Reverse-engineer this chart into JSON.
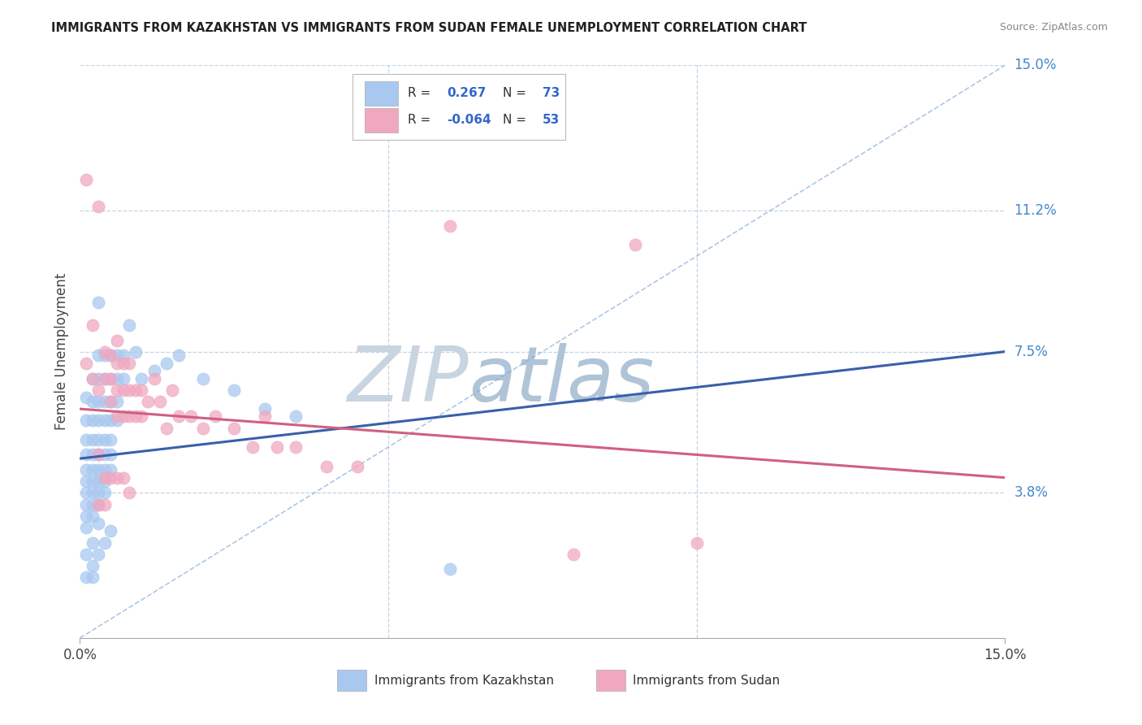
{
  "title": "IMMIGRANTS FROM KAZAKHSTAN VS IMMIGRANTS FROM SUDAN FEMALE UNEMPLOYMENT CORRELATION CHART",
  "source": "Source: ZipAtlas.com",
  "ylabel": "Female Unemployment",
  "xlim": [
    0,
    0.15
  ],
  "ylim": [
    0,
    0.15
  ],
  "ytick_labels_right": [
    "15.0%",
    "11.2%",
    "7.5%",
    "3.8%"
  ],
  "ytick_values_right": [
    0.15,
    0.112,
    0.075,
    0.038
  ],
  "kazakhstan_color": "#a8c8f0",
  "sudan_color": "#f0a8c0",
  "kazakhstan_R": 0.267,
  "kazakhstan_N": 73,
  "sudan_R": -0.064,
  "sudan_N": 53,
  "trend_blue": "#3a5faa",
  "trend_pink": "#d06080",
  "diag_color": "#8ab0d8",
  "watermark_zip": "ZIP",
  "watermark_atlas": "atlas",
  "watermark_color_zip": "#c8d8e8",
  "watermark_color_atlas": "#b8cfe8",
  "kazakhstan_points": [
    [
      0.001,
      0.063
    ],
    [
      0.001,
      0.057
    ],
    [
      0.001,
      0.052
    ],
    [
      0.001,
      0.048
    ],
    [
      0.001,
      0.044
    ],
    [
      0.001,
      0.041
    ],
    [
      0.001,
      0.038
    ],
    [
      0.001,
      0.035
    ],
    [
      0.001,
      0.032
    ],
    [
      0.001,
      0.029
    ],
    [
      0.002,
      0.068
    ],
    [
      0.002,
      0.062
    ],
    [
      0.002,
      0.057
    ],
    [
      0.002,
      0.052
    ],
    [
      0.002,
      0.048
    ],
    [
      0.002,
      0.044
    ],
    [
      0.002,
      0.041
    ],
    [
      0.002,
      0.038
    ],
    [
      0.002,
      0.035
    ],
    [
      0.002,
      0.032
    ],
    [
      0.003,
      0.074
    ],
    [
      0.003,
      0.068
    ],
    [
      0.003,
      0.062
    ],
    [
      0.003,
      0.057
    ],
    [
      0.003,
      0.052
    ],
    [
      0.003,
      0.048
    ],
    [
      0.003,
      0.044
    ],
    [
      0.003,
      0.041
    ],
    [
      0.003,
      0.038
    ],
    [
      0.003,
      0.035
    ],
    [
      0.004,
      0.074
    ],
    [
      0.004,
      0.068
    ],
    [
      0.004,
      0.062
    ],
    [
      0.004,
      0.057
    ],
    [
      0.004,
      0.052
    ],
    [
      0.004,
      0.048
    ],
    [
      0.004,
      0.044
    ],
    [
      0.004,
      0.041
    ],
    [
      0.004,
      0.038
    ],
    [
      0.005,
      0.074
    ],
    [
      0.005,
      0.068
    ],
    [
      0.005,
      0.062
    ],
    [
      0.005,
      0.057
    ],
    [
      0.005,
      0.052
    ],
    [
      0.005,
      0.048
    ],
    [
      0.005,
      0.044
    ],
    [
      0.006,
      0.074
    ],
    [
      0.006,
      0.068
    ],
    [
      0.006,
      0.062
    ],
    [
      0.006,
      0.057
    ],
    [
      0.007,
      0.074
    ],
    [
      0.007,
      0.068
    ],
    [
      0.008,
      0.082
    ],
    [
      0.009,
      0.075
    ],
    [
      0.01,
      0.068
    ],
    [
      0.012,
      0.07
    ],
    [
      0.014,
      0.072
    ],
    [
      0.016,
      0.074
    ],
    [
      0.02,
      0.068
    ],
    [
      0.025,
      0.065
    ],
    [
      0.03,
      0.06
    ],
    [
      0.035,
      0.058
    ],
    [
      0.003,
      0.088
    ],
    [
      0.002,
      0.025
    ],
    [
      0.001,
      0.022
    ],
    [
      0.002,
      0.019
    ],
    [
      0.003,
      0.022
    ],
    [
      0.004,
      0.025
    ],
    [
      0.005,
      0.028
    ],
    [
      0.001,
      0.016
    ],
    [
      0.002,
      0.016
    ],
    [
      0.003,
      0.03
    ],
    [
      0.06,
      0.018
    ]
  ],
  "sudan_points": [
    [
      0.001,
      0.12
    ],
    [
      0.003,
      0.113
    ],
    [
      0.002,
      0.082
    ],
    [
      0.001,
      0.072
    ],
    [
      0.002,
      0.068
    ],
    [
      0.003,
      0.065
    ],
    [
      0.004,
      0.075
    ],
    [
      0.004,
      0.068
    ],
    [
      0.005,
      0.074
    ],
    [
      0.005,
      0.068
    ],
    [
      0.005,
      0.062
    ],
    [
      0.006,
      0.078
    ],
    [
      0.006,
      0.072
    ],
    [
      0.006,
      0.065
    ],
    [
      0.006,
      0.058
    ],
    [
      0.007,
      0.072
    ],
    [
      0.007,
      0.065
    ],
    [
      0.007,
      0.058
    ],
    [
      0.008,
      0.072
    ],
    [
      0.008,
      0.065
    ],
    [
      0.008,
      0.058
    ],
    [
      0.009,
      0.065
    ],
    [
      0.009,
      0.058
    ],
    [
      0.01,
      0.065
    ],
    [
      0.01,
      0.058
    ],
    [
      0.011,
      0.062
    ],
    [
      0.012,
      0.068
    ],
    [
      0.013,
      0.062
    ],
    [
      0.014,
      0.055
    ],
    [
      0.015,
      0.065
    ],
    [
      0.016,
      0.058
    ],
    [
      0.018,
      0.058
    ],
    [
      0.02,
      0.055
    ],
    [
      0.022,
      0.058
    ],
    [
      0.025,
      0.055
    ],
    [
      0.028,
      0.05
    ],
    [
      0.03,
      0.058
    ],
    [
      0.032,
      0.05
    ],
    [
      0.035,
      0.05
    ],
    [
      0.04,
      0.045
    ],
    [
      0.045,
      0.045
    ],
    [
      0.06,
      0.108
    ],
    [
      0.09,
      0.103
    ],
    [
      0.003,
      0.048
    ],
    [
      0.004,
      0.042
    ],
    [
      0.005,
      0.042
    ],
    [
      0.006,
      0.042
    ],
    [
      0.007,
      0.042
    ],
    [
      0.008,
      0.038
    ],
    [
      0.003,
      0.035
    ],
    [
      0.004,
      0.035
    ],
    [
      0.1,
      0.025
    ],
    [
      0.08,
      0.022
    ]
  ],
  "kaz_trend": [
    0.0,
    0.15,
    0.047,
    0.075
  ],
  "sud_trend": [
    0.0,
    0.15,
    0.06,
    0.042
  ]
}
